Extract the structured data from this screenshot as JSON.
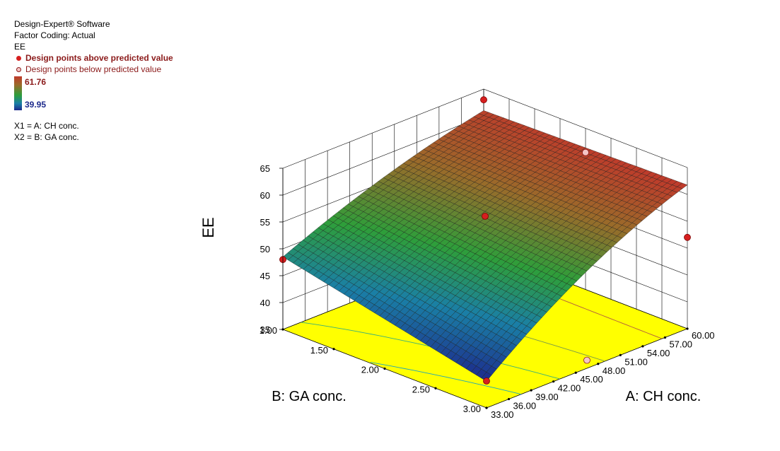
{
  "legend": {
    "software": "Design-Expert® Software",
    "coding": "Factor Coding: Actual",
    "response": "EE",
    "above_label": "Design points above predicted value",
    "below_label": "Design points below predicted value",
    "above_color": "#d61f1f",
    "below_color": "#f4c6c6",
    "scale_max": "61.76",
    "scale_min": "39.95",
    "x1_def": "X1 = A: CH conc.",
    "x2_def": "X2 = B: GA conc."
  },
  "chart_data": {
    "type": "surface",
    "zlabel": "EE",
    "xlabel": "A: CH conc.",
    "ylabel": "B: GA conc.",
    "x_ticks": [
      "33.00",
      "36.00",
      "39.00",
      "42.00",
      "45.00",
      "48.00",
      "51.00",
      "54.00",
      "57.00",
      "60.00"
    ],
    "y_ticks": [
      "1.00",
      "1.50",
      "2.00",
      "2.50",
      "3.00"
    ],
    "z_ticks": [
      "35",
      "40",
      "45",
      "50",
      "55",
      "60",
      "65"
    ],
    "xlim": [
      33,
      60
    ],
    "ylim": [
      1,
      3
    ],
    "zlim": [
      35,
      65
    ],
    "surface_corners": {
      "A33_B1": 48.5,
      "A60_B1": 61.0,
      "A33_B3": 39.95,
      "A60_B3": 61.76
    },
    "design_points": [
      {
        "A": 33,
        "B": 3,
        "EE": 40,
        "type": "above"
      },
      {
        "A": 33,
        "B": 1,
        "EE": 48,
        "type": "above"
      },
      {
        "A": 46.5,
        "B": 2,
        "EE": 56,
        "type": "above"
      },
      {
        "A": 60,
        "B": 3,
        "EE": 52,
        "type": "above"
      },
      {
        "A": 60,
        "B": 1,
        "EE": 63,
        "type": "above"
      },
      {
        "A": 46.5,
        "B": 3,
        "EE": 36.5,
        "type": "below"
      },
      {
        "A": 60,
        "B": 2,
        "EE": 60.5,
        "type": "below"
      }
    ],
    "contour_plane_color": "#ffff00",
    "grid": true
  }
}
